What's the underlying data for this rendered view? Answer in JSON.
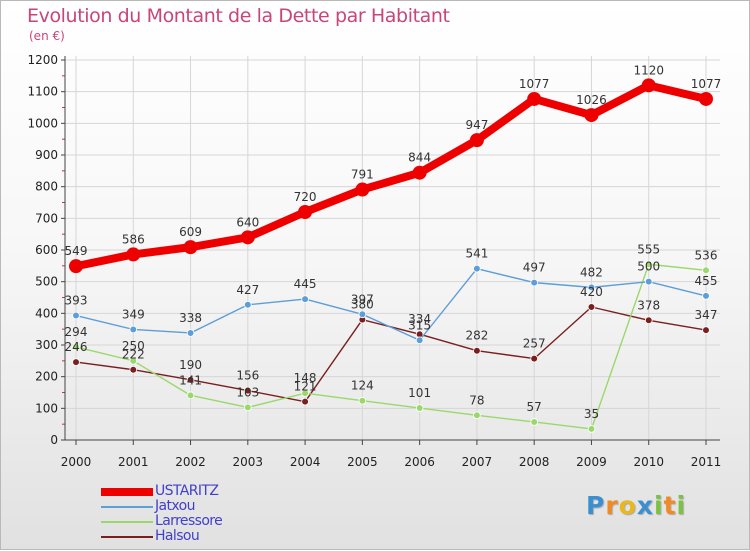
{
  "header": {
    "title": "Evolution du Montant de la Dette par Habitant",
    "unit_note": "(en €)"
  },
  "chart_data": {
    "type": "line",
    "title": "Evolution du Montant de la Dette par Habitant",
    "subtitle": "(en €)",
    "xlabel": "",
    "ylabel": "",
    "categories": [
      "2000",
      "2001",
      "2002",
      "2003",
      "2004",
      "2005",
      "2006",
      "2007",
      "2008",
      "2009",
      "2010",
      "2011"
    ],
    "ylim": [
      0,
      1200
    ],
    "yticks": [
      0,
      100,
      200,
      300,
      400,
      500,
      600,
      700,
      800,
      900,
      1000,
      1100,
      1200
    ],
    "grid": true,
    "legend_position": "bottom-left",
    "series": [
      {
        "name": "USTARITZ",
        "color": "#ee0000",
        "values": [
          549,
          586,
          609,
          640,
          720,
          791,
          844,
          947,
          1077,
          1026,
          1120,
          1077
        ]
      },
      {
        "name": "Jatxou",
        "color": "#5d9ed7",
        "values": [
          393,
          349,
          338,
          427,
          445,
          397,
          315,
          541,
          497,
          482,
          500,
          455
        ]
      },
      {
        "name": "Larressore",
        "color": "#9ad86b",
        "values": [
          294,
          250,
          141,
          103,
          148,
          124,
          101,
          78,
          57,
          35,
          555,
          536
        ]
      },
      {
        "name": "Halsou",
        "color": "#7a1f1f",
        "values": [
          246,
          222,
          190,
          156,
          121,
          380,
          334,
          282,
          257,
          420,
          378,
          347
        ]
      }
    ]
  },
  "legend": {
    "items": [
      {
        "label": "USTARITZ"
      },
      {
        "label": "Jatxou"
      },
      {
        "label": "Larressore"
      },
      {
        "label": "Halsou"
      }
    ]
  },
  "branding": {
    "logo_text": "Proxiti",
    "letters": [
      {
        "ch": "P",
        "color": "#3b8fd0"
      },
      {
        "ch": "r",
        "color": "#f08a24"
      },
      {
        "ch": "o",
        "color": "#e8b820"
      },
      {
        "ch": "x",
        "color": "#3b8fd0"
      },
      {
        "ch": "i",
        "color": "#7cc242"
      },
      {
        "ch": "t",
        "color": "#f08a24"
      },
      {
        "ch": "i",
        "color": "#7cc242"
      }
    ]
  }
}
